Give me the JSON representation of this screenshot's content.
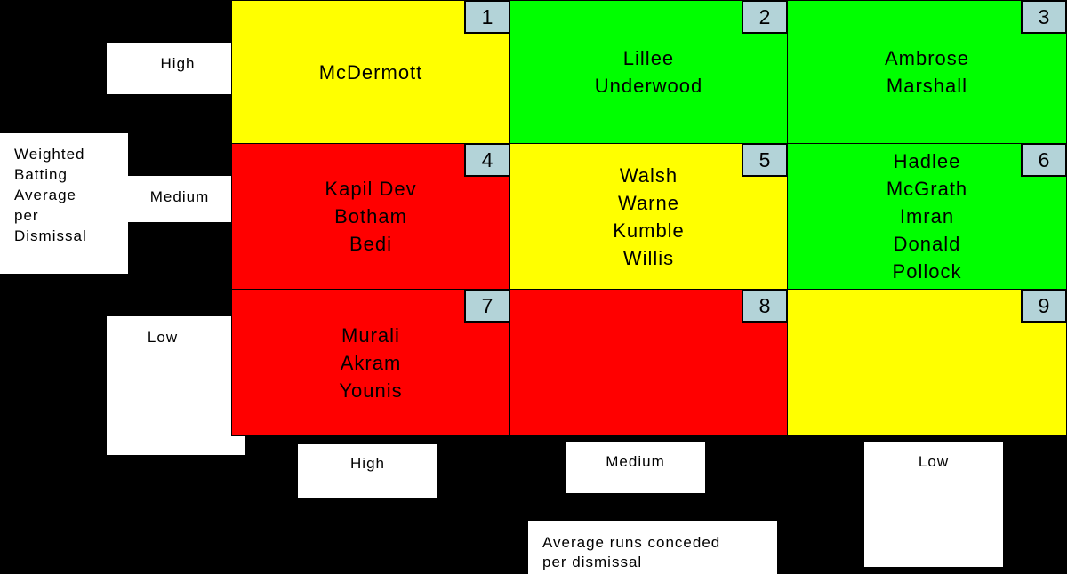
{
  "y_axis": {
    "description_lines": [
      "Weighted",
      "Batting",
      "Average",
      "per",
      "Dismissal"
    ],
    "levels": [
      "High",
      "Medium",
      "Low"
    ]
  },
  "x_axis": {
    "description_lines": [
      "Average runs conceded",
      "per dismissal"
    ],
    "levels": [
      "High",
      "Medium",
      "Low"
    ]
  },
  "colors": {
    "yellow": "#ffff00",
    "green": "#00ff00",
    "red": "#ff0000",
    "number_badge": "#b3d3d8"
  },
  "cells": [
    {
      "number": "1",
      "color": "yellow",
      "names": [
        "McDermott"
      ]
    },
    {
      "number": "2",
      "color": "green",
      "names": [
        "Lillee",
        "Underwood"
      ]
    },
    {
      "number": "3",
      "color": "green",
      "names": [
        "Ambrose",
        "Marshall"
      ]
    },
    {
      "number": "4",
      "color": "red",
      "names": [
        "Kapil Dev",
        "Botham",
        "Bedi"
      ]
    },
    {
      "number": "5",
      "color": "yellow",
      "names": [
        "Walsh",
        "Warne",
        "Kumble",
        "Willis"
      ]
    },
    {
      "number": "6",
      "color": "green",
      "names": [
        "Hadlee",
        "McGrath",
        "Imran",
        "Donald",
        "Pollock"
      ]
    },
    {
      "number": "7",
      "color": "red",
      "names": [
        "Murali",
        "Akram",
        "Younis"
      ]
    },
    {
      "number": "8",
      "color": "red",
      "names": []
    },
    {
      "number": "9",
      "color": "yellow",
      "names": []
    }
  ]
}
